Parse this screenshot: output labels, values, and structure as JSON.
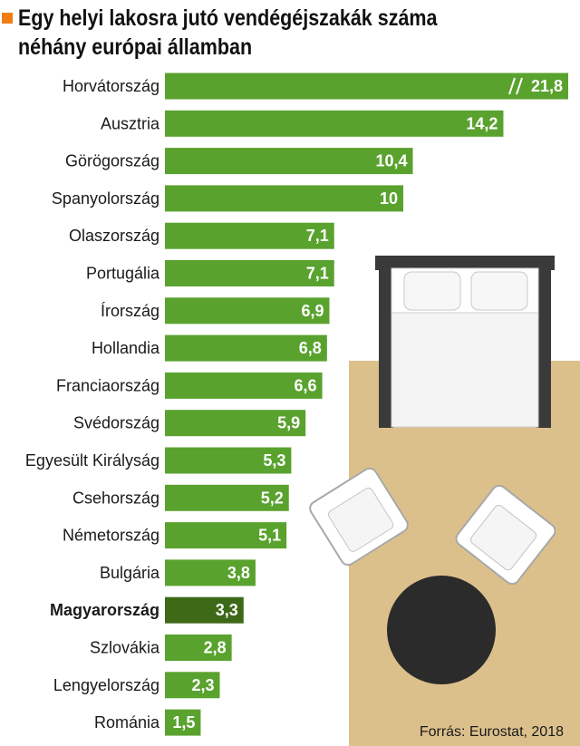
{
  "chart_data": {
    "type": "bar",
    "orientation": "horizontal",
    "title": "Egy helyi lakosra jutó vendégéjszakák száma néhány európai államban",
    "categories": [
      "Horvátország",
      "Ausztria",
      "Görögország",
      "Spanyolország",
      "Olaszország",
      "Portugália",
      "Írország",
      "Hollandia",
      "Franciaország",
      "Svédország",
      "Egyesült Királyság",
      "Csehország",
      "Németország",
      "Bulgária",
      "Magyarország",
      "Szlovákia",
      "Lengyelország",
      "Románia"
    ],
    "values": [
      21.8,
      14.2,
      10.4,
      10,
      7.1,
      7.1,
      6.9,
      6.8,
      6.6,
      5.9,
      5.3,
      5.2,
      5.1,
      3.8,
      3.3,
      2.8,
      2.3,
      1.5
    ],
    "value_labels": [
      "21,8",
      "14,2",
      "10,4",
      "10",
      "7,1",
      "7,1",
      "6,9",
      "6,8",
      "6,6",
      "5,9",
      "5,3",
      "5,2",
      "5,1",
      "3,8",
      "3,3",
      "2,8",
      "2,3",
      "1,5"
    ],
    "highlighted_category": "Magyarország",
    "axis_break_category": "Horvátország",
    "colors": {
      "bar": "#5aa22e",
      "highlight": "#3e6a18",
      "accent": "#f07d14",
      "floor": "#dcc08c"
    },
    "grid": false,
    "legend": "none"
  },
  "source": "Forrás: Eurostat, 2018"
}
